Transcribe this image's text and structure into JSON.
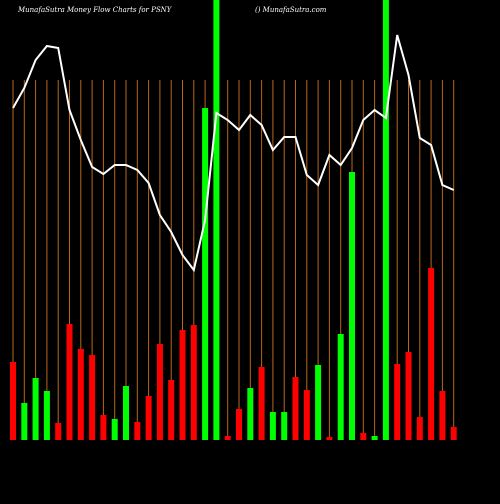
{
  "chart_data": {
    "type": "bar",
    "title": "MunafaSutra  Money Flow  Charts for PSNY",
    "subtitle": "() MunafaSutra.com",
    "categories": [
      null,
      null,
      null,
      null,
      null,
      null,
      null,
      null,
      null,
      null,
      null,
      null,
      null,
      null,
      null,
      null,
      null,
      null,
      null,
      null,
      null,
      null,
      null,
      null,
      null,
      null,
      null,
      null,
      null,
      null,
      null,
      null,
      null,
      null,
      null,
      null,
      null,
      null,
      null,
      null
    ],
    "values": [
      78,
      37,
      62,
      49,
      17,
      116,
      91,
      85,
      25,
      21,
      54,
      18,
      44,
      96,
      60,
      110,
      115,
      332,
      440,
      4,
      31,
      52,
      73,
      28,
      28,
      63,
      50,
      75,
      3,
      106,
      268,
      7,
      4,
      440,
      76,
      88,
      23,
      172,
      49,
      13
    ],
    "colors": [
      "#ff0000",
      "#00ff00",
      "#00ff00",
      "#00ff00",
      "#ff0000",
      "#ff0000",
      "#ff0000",
      "#ff0000",
      "#ff0000",
      "#00ff00",
      "#00ff00",
      "#ff0000",
      "#ff0000",
      "#ff0000",
      "#ff0000",
      "#ff0000",
      "#ff0000",
      "#00ff00",
      "#00ff00",
      "#ff0000",
      "#ff0000",
      "#00ff00",
      "#ff0000",
      "#00ff00",
      "#00ff00",
      "#ff0000",
      "#ff0000",
      "#00ff00",
      "#ff0000",
      "#00ff00",
      "#00ff00",
      "#ff0000",
      "#00ff00",
      "#00ff00",
      "#ff0000",
      "#ff0000",
      "#ff0000",
      "#ff0000",
      "#ff0000",
      "#ff0000"
    ],
    "line": {
      "color": "#ffffff",
      "values": [
        332,
        352,
        380,
        394,
        392,
        330,
        300,
        273,
        266,
        275,
        275,
        270,
        257,
        225,
        208,
        185,
        170,
        220,
        327,
        320,
        310,
        325,
        315,
        290,
        303,
        303,
        265,
        255,
        285,
        275,
        292,
        320,
        330,
        322,
        405,
        365,
        302,
        295,
        255,
        250
      ]
    },
    "ylim": [
      0,
      440
    ],
    "grid": true,
    "grid_color": "#b8671a",
    "background": "#000000"
  }
}
